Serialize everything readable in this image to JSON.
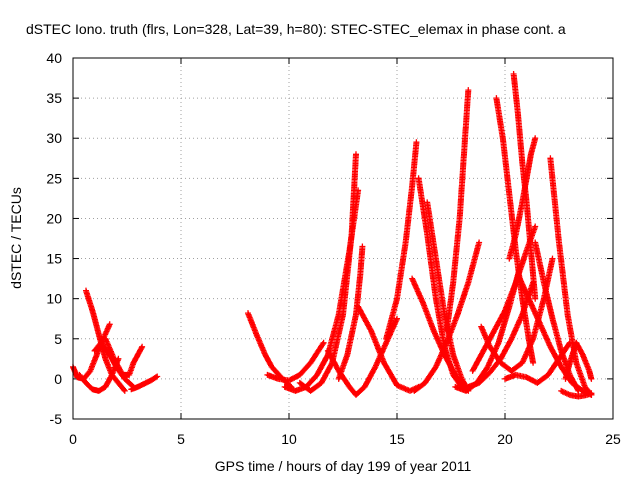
{
  "chart_data": {
    "type": "scatter",
    "title": "dSTEC Iono. truth (flrs, Lon=328, Lat=39, h=80): STEC-STEC_elemax in phase cont. a",
    "xlabel": "GPS time / hours of day 199 of year 2011",
    "ylabel": "dSTEC  / TECUs",
    "xlim": [
      0,
      25
    ],
    "ylim": [
      -5,
      40
    ],
    "xticks": [
      0,
      5,
      10,
      15,
      20,
      25
    ],
    "yticks": [
      -5,
      0,
      5,
      10,
      15,
      20,
      25,
      30,
      35,
      40
    ],
    "grid": true,
    "marker": "+",
    "color": "#ff0000",
    "series": [
      {
        "x": [
          0.0,
          0.2,
          0.5,
          0.8,
          1.1,
          1.4,
          1.7
        ],
        "y": [
          1.5,
          0.2,
          0.0,
          1.0,
          3.0,
          5.0,
          6.8
        ]
      },
      {
        "x": [
          0.6,
          0.9,
          1.2,
          1.5,
          1.8,
          2.1,
          2.4
        ],
        "y": [
          11.0,
          8.5,
          5.5,
          2.5,
          0.5,
          -0.5,
          -1.5
        ]
      },
      {
        "x": [
          0.3,
          0.6,
          0.9,
          1.2,
          1.5,
          1.8,
          2.1
        ],
        "y": [
          0.5,
          -0.5,
          -1.3,
          -1.5,
          -1.0,
          0.5,
          2.5
        ]
      },
      {
        "x": [
          1.0,
          1.3,
          1.7,
          2.0,
          2.4,
          2.8
        ],
        "y": [
          3.5,
          4.5,
          3.0,
          1.5,
          0.0,
          -1.0
        ]
      },
      {
        "x": [
          1.5,
          1.9,
          2.3,
          2.6,
          2.8,
          3.0,
          3.2
        ],
        "y": [
          5.0,
          2.5,
          0.5,
          0.5,
          2.0,
          3.0,
          4.0
        ]
      },
      {
        "x": [
          2.7,
          3.0,
          3.3,
          3.6,
          3.9
        ],
        "y": [
          -1.3,
          -1.0,
          -0.6,
          -0.2,
          0.3
        ]
      },
      {
        "x": [
          8.1,
          8.5,
          8.9,
          9.2,
          9.6,
          9.9,
          10.1
        ],
        "y": [
          8.2,
          5.5,
          3.0,
          1.5,
          0.3,
          -0.5,
          -1.0
        ]
      },
      {
        "x": [
          9.0,
          9.5,
          10.0,
          10.5,
          11.0,
          11.6
        ],
        "y": [
          0.5,
          0.0,
          -0.2,
          0.5,
          2.0,
          4.5
        ]
      },
      {
        "x": [
          9.8,
          10.3,
          10.8,
          11.3,
          11.8,
          12.3,
          12.8,
          13.2
        ],
        "y": [
          -1.0,
          -1.5,
          -1.0,
          0.5,
          3.0,
          8.0,
          16.0,
          23.5
        ]
      },
      {
        "x": [
          10.5,
          11.0,
          11.5,
          12.0,
          12.5,
          12.9,
          13.1
        ],
        "y": [
          -0.5,
          -1.5,
          -0.5,
          2.0,
          8.0,
          18.0,
          28.0
        ]
      },
      {
        "x": [
          11.8,
          12.3,
          12.8,
          13.1,
          13.5,
          14.0,
          14.5,
          15.0
        ],
        "y": [
          3.5,
          1.0,
          -1.0,
          -2.0,
          -1.0,
          1.5,
          4.5,
          7.5
        ]
      },
      {
        "x": [
          12.3,
          12.7,
          13.1,
          13.3,
          13.4
        ],
        "y": [
          0.0,
          3.0,
          8.0,
          13.0,
          16.5
        ]
      },
      {
        "x": [
          13.2,
          13.8,
          14.4,
          15.0,
          15.6,
          16.0
        ],
        "y": [
          9.0,
          6.0,
          2.0,
          -0.8,
          -1.5,
          -1.0
        ]
      },
      {
        "x": [
          14.5,
          15.0,
          15.4,
          15.7,
          15.9
        ],
        "y": [
          5.0,
          10.0,
          17.0,
          24.0,
          29.5
        ]
      },
      {
        "x": [
          15.7,
          16.2,
          16.7,
          17.2,
          17.7,
          18.2
        ],
        "y": [
          12.5,
          9.5,
          6.0,
          3.0,
          0.5,
          -1.2
        ]
      },
      {
        "x": [
          15.8,
          16.3,
          16.8,
          17.3,
          17.8,
          18.3,
          18.8
        ],
        "y": [
          -1.5,
          -0.5,
          1.5,
          4.5,
          8.0,
          12.0,
          17.0
        ]
      },
      {
        "x": [
          16.0,
          16.4,
          16.8,
          17.2,
          17.6,
          18.0
        ],
        "y": [
          25.0,
          18.0,
          10.0,
          4.0,
          0.5,
          -1.0
        ]
      },
      {
        "x": [
          16.4,
          16.8,
          17.2,
          17.6,
          18.0,
          18.3
        ],
        "y": [
          22.0,
          15.0,
          8.0,
          3.0,
          0.0,
          -1.5
        ]
      },
      {
        "x": [
          17.3,
          17.6,
          17.9,
          18.1,
          18.3
        ],
        "y": [
          6.0,
          12.0,
          20.0,
          28.0,
          36.0
        ]
      },
      {
        "x": [
          17.7,
          18.2,
          18.7,
          19.2,
          19.7,
          20.2,
          20.7
        ],
        "y": [
          -1.0,
          -1.5,
          -0.5,
          1.5,
          4.5,
          9.0,
          14.0
        ]
      },
      {
        "x": [
          18.3,
          18.8,
          19.3,
          19.8,
          20.3,
          20.8,
          21.3
        ],
        "y": [
          -1.0,
          -0.5,
          0.8,
          2.5,
          5.0,
          8.0,
          12.0
        ]
      },
      {
        "x": [
          18.5,
          19.0,
          19.5,
          20.0,
          20.5,
          21.0,
          21.4
        ],
        "y": [
          1.0,
          3.5,
          6.0,
          8.5,
          12.0,
          16.0,
          19.0
        ]
      },
      {
        "x": [
          18.9,
          19.3,
          19.8,
          20.3,
          20.8,
          21.3,
          21.8,
          22.2
        ],
        "y": [
          6.5,
          4.0,
          2.0,
          1.0,
          2.0,
          5.0,
          10.0,
          15.0
        ]
      },
      {
        "x": [
          19.6,
          19.9,
          20.2,
          20.5,
          20.8,
          21.1,
          21.3
        ],
        "y": [
          35.0,
          30.0,
          23.0,
          16.0,
          10.0,
          5.0,
          2.0
        ]
      },
      {
        "x": [
          20.4,
          20.6,
          20.8,
          21.0,
          21.2,
          21.4
        ],
        "y": [
          38.0,
          33.0,
          27.0,
          22.0,
          16.0,
          10.0
        ]
      },
      {
        "x": [
          20.2,
          20.5,
          20.8,
          21.0,
          21.2,
          21.4
        ],
        "y": [
          15.0,
          18.0,
          22.0,
          25.0,
          28.0,
          30.0
        ]
      },
      {
        "x": [
          20.0,
          20.5,
          21.0,
          21.5,
          22.0,
          22.5,
          23.0
        ],
        "y": [
          0.0,
          0.5,
          0.2,
          -0.5,
          0.5,
          2.5,
          4.5
        ]
      },
      {
        "x": [
          20.6,
          21.1,
          21.6,
          22.1,
          22.6,
          23.1,
          23.6,
          24.0
        ],
        "y": [
          13.0,
          10.0,
          7.0,
          4.0,
          1.5,
          -0.5,
          -1.5,
          -2.0
        ]
      },
      {
        "x": [
          21.4,
          21.8,
          22.2,
          22.6,
          23.0,
          23.4
        ],
        "y": [
          17.0,
          12.0,
          7.5,
          3.5,
          0.5,
          -1.5
        ]
      },
      {
        "x": [
          22.1,
          22.5,
          22.9,
          23.3,
          23.7,
          24.0
        ],
        "y": [
          27.5,
          17.0,
          8.0,
          2.0,
          -1.0,
          -2.0
        ]
      },
      {
        "x": [
          22.6,
          23.0,
          23.4,
          23.8,
          24.0
        ],
        "y": [
          -1.5,
          -2.0,
          -2.2,
          -2.0,
          -1.8
        ]
      },
      {
        "x": [
          22.8,
          23.0,
          23.3,
          23.6,
          23.9,
          24.0
        ],
        "y": [
          0.0,
          2.0,
          4.5,
          3.0,
          1.0,
          0.0
        ]
      }
    ]
  }
}
